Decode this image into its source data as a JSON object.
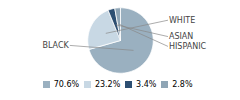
{
  "chart_data": {
    "type": "pie",
    "categories": [
      "BLACK",
      "WHITE",
      "ASIAN",
      "HISPANIC"
    ],
    "values": [
      70.6,
      23.2,
      3.4,
      2.8
    ],
    "value_labels": [
      "70.6%",
      "23.2%",
      "3.4%",
      "2.8%"
    ],
    "colors": [
      "#9ab0c0",
      "#c8d8e4",
      "#2d4f72",
      "#8fa5b5"
    ],
    "legend": "bottom"
  }
}
